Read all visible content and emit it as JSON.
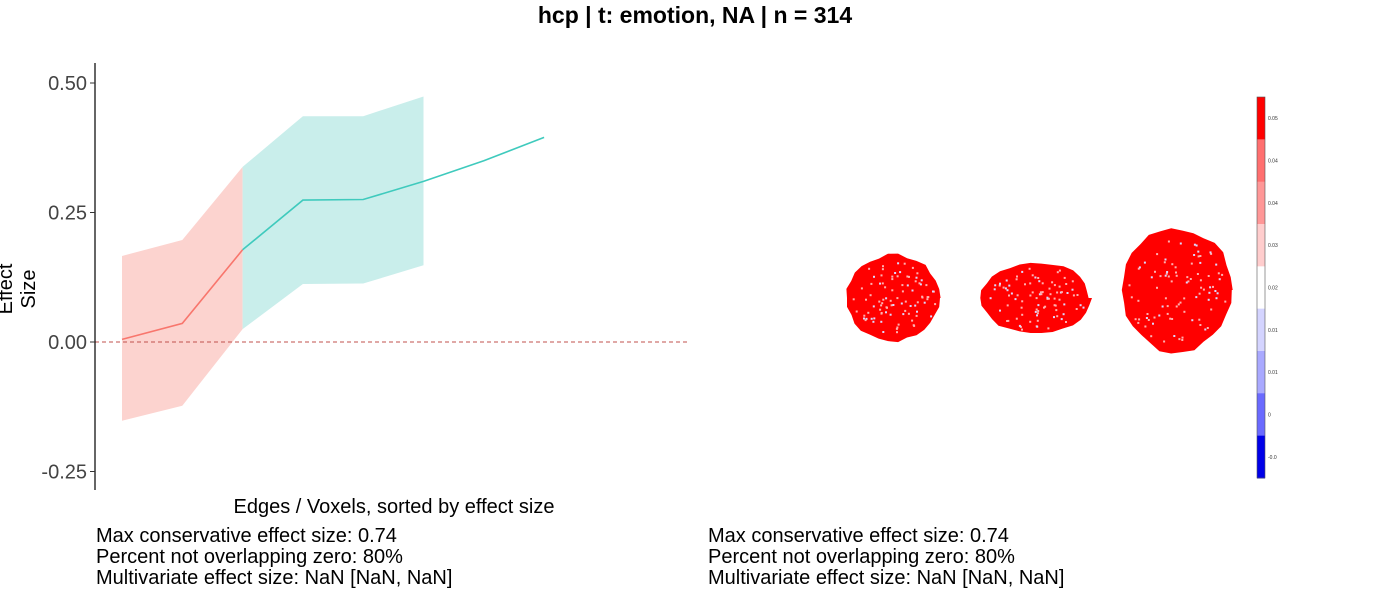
{
  "title": "hcp | t: emotion, NA | n = 314",
  "chart_data": {
    "type": "line",
    "xlabel": "Edges / Voxels, sorted by effect size",
    "ylabel": "Effect Size",
    "ylim": [
      -0.28,
      0.54
    ],
    "yticks": [
      {
        "value": 0.5,
        "label": "0.50"
      },
      {
        "value": 0.25,
        "label": "0.25"
      },
      {
        "value": 0.0,
        "label": "0.00"
      },
      {
        "value": -0.25,
        "label": "-0.25"
      }
    ],
    "reference_line": {
      "value": 0.0,
      "style": "dashed",
      "color": "#c0504d"
    },
    "grid": false,
    "legend": "none",
    "series": [
      {
        "color": "#f8766d",
        "ribbon_color": "#fcd3cf",
        "x": [
          1,
          2,
          3
        ],
        "values": [
          0.005,
          0.036,
          0.178
        ],
        "lower": [
          -0.152,
          -0.123,
          0.025
        ],
        "upper": [
          0.166,
          0.197,
          0.338
        ]
      },
      {
        "color": "#3fcabd",
        "ribbon_color": "#c9eeeb",
        "x": [
          3,
          4,
          5,
          6,
          7,
          8
        ],
        "values": [
          0.178,
          0.274,
          0.275,
          0.31,
          0.35,
          0.395
        ],
        "lower": [
          0.025,
          0.112,
          0.113,
          0.148,
          null,
          null
        ],
        "upper": [
          0.338,
          0.436,
          0.436,
          0.474,
          null,
          null
        ]
      }
    ]
  },
  "colorbar": {
    "ticks": [
      "0.05",
      "0.04",
      "0.04",
      "0.03",
      "0.02",
      "0.01",
      "0.01",
      "0",
      "-0.0"
    ],
    "colors": [
      "#ff0000",
      "#ff6f6f",
      "#ff9797",
      "#ffcdcd",
      "#ffffff",
      "#d4d4ff",
      "#a9a9ff",
      "#6a6aff",
      "#0000e8"
    ]
  },
  "stats_left": [
    "Max conservative effect size: 0.74",
    "Percent not overlapping zero: 80%",
    "Multivariate effect size: NaN [NaN, NaN]"
  ],
  "stats_right": [
    "Max conservative effect size: 0.74",
    "Percent not overlapping zero: 80%",
    "Multivariate effect size: NaN [NaN, NaN]"
  ]
}
